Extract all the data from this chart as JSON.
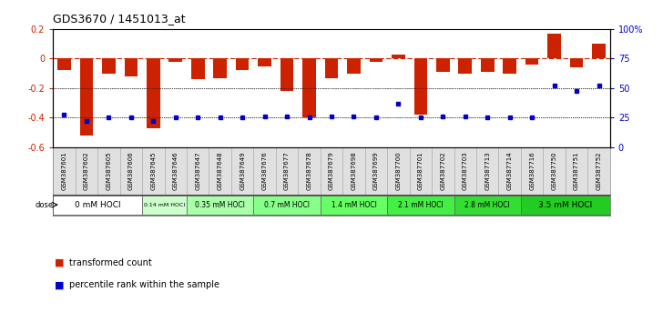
{
  "title": "GDS3670 / 1451013_at",
  "samples": [
    "GSM387601",
    "GSM387602",
    "GSM387605",
    "GSM387606",
    "GSM387645",
    "GSM387646",
    "GSM387647",
    "GSM387648",
    "GSM387649",
    "GSM387676",
    "GSM387677",
    "GSM387678",
    "GSM387679",
    "GSM387698",
    "GSM387699",
    "GSM387700",
    "GSM387701",
    "GSM387702",
    "GSM387703",
    "GSM387713",
    "GSM387714",
    "GSM387716",
    "GSM387750",
    "GSM387751",
    "GSM387752"
  ],
  "red_values": [
    -0.08,
    -0.52,
    -0.1,
    -0.12,
    -0.47,
    -0.02,
    -0.14,
    -0.13,
    -0.08,
    -0.05,
    -0.22,
    -0.4,
    -0.13,
    -0.1,
    -0.02,
    0.03,
    -0.38,
    -0.09,
    -0.1,
    -0.09,
    -0.1,
    -0.04,
    0.17,
    -0.06,
    0.1
  ],
  "blue_values": [
    28,
    22,
    25,
    25,
    22,
    25,
    25,
    25,
    25,
    26,
    26,
    25,
    26,
    26,
    25,
    37,
    25,
    26,
    26,
    25,
    25,
    25,
    52,
    48,
    52
  ],
  "dose_groups": [
    {
      "label": "0 mM HOCl",
      "start": 0,
      "end": 4,
      "color": "#ffffff"
    },
    {
      "label": "0.14 mM HOCl",
      "start": 4,
      "end": 6,
      "color": "#ccffcc"
    },
    {
      "label": "0.35 mM HOCl",
      "start": 6,
      "end": 9,
      "color": "#aaffaa"
    },
    {
      "label": "0.7 mM HOCl",
      "start": 9,
      "end": 12,
      "color": "#88ff88"
    },
    {
      "label": "1.4 mM HOCl",
      "start": 12,
      "end": 15,
      "color": "#66ff66"
    },
    {
      "label": "2.1 mM HOCl",
      "start": 15,
      "end": 18,
      "color": "#44ee44"
    },
    {
      "label": "2.8 mM HOCl",
      "start": 18,
      "end": 21,
      "color": "#33dd33"
    },
    {
      "label": "3.5 mM HOCl",
      "start": 21,
      "end": 25,
      "color": "#22cc22"
    }
  ],
  "ylim_left": [
    -0.6,
    0.2
  ],
  "ylim_right": [
    0,
    100
  ],
  "yticks_left": [
    0.2,
    0.0,
    -0.2,
    -0.4,
    -0.6
  ],
  "yticks_right": [
    100,
    75,
    50,
    25,
    0
  ],
  "bar_color": "#cc2200",
  "dot_color": "#0000cc",
  "zero_line_color": "#cc2200",
  "grid_color": "#000000",
  "background_color": "#ffffff",
  "fig_width": 7.28,
  "fig_height": 3.54
}
